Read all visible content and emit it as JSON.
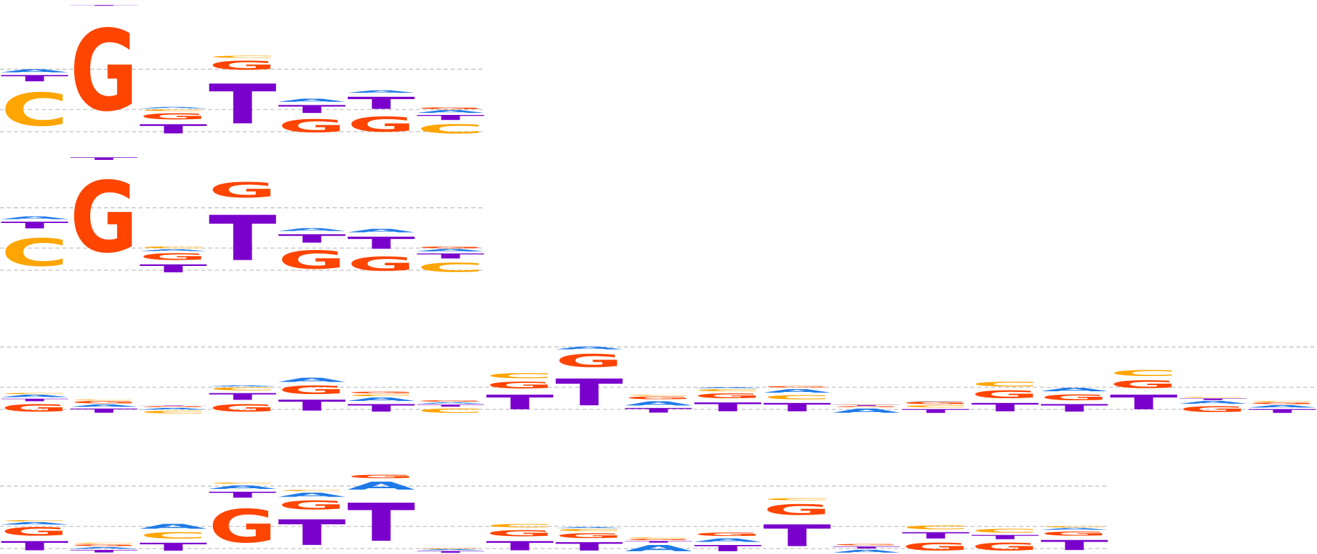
{
  "chart_data": [
    {
      "type": "logo",
      "ylim": [
        0,
        2
      ],
      "yticks": [
        0.07,
        0.4,
        1
      ],
      "grid": true,
      "series": [
        {
          "name": "A",
          "color": "#1f7ae8",
          "values": [
            0.07,
            0,
            0.03,
            0,
            0.07,
            0.05,
            0.06
          ]
        },
        {
          "name": "C",
          "color": "#ffa500",
          "values": [
            0.79,
            0,
            0.04,
            0.05,
            0,
            0,
            0.22
          ]
        },
        {
          "name": "G",
          "color": "#ff4500",
          "values": [
            0,
            1.94,
            0.15,
            0.21,
            0.31,
            0.35,
            0.04
          ]
        },
        {
          "name": "T",
          "color": "#7a00cc",
          "values": [
            0.15,
            0.02,
            0.22,
            0.95,
            0.19,
            0.29,
            0.12
          ]
        }
      ]
    },
    {
      "type": "logo",
      "ylim": [
        0,
        2
      ],
      "yticks": [
        0.07,
        0.4,
        1
      ],
      "grid": true,
      "series": [
        {
          "name": "A",
          "color": "#1f7ae8",
          "values": [
            0.06,
            0,
            0.04,
            0,
            0.06,
            0.08,
            0.05
          ]
        },
        {
          "name": "C",
          "color": "#ffa500",
          "values": [
            0.66,
            0,
            0.04,
            0,
            0,
            0,
            0.22
          ]
        },
        {
          "name": "G",
          "color": "#ff4500",
          "values": [
            0,
            1.7,
            0.16,
            0.36,
            0.44,
            0.33,
            0.04
          ]
        },
        {
          "name": "T",
          "color": "#7a00cc",
          "values": [
            0.16,
            0.06,
            0.19,
            1.08,
            0.2,
            0.29,
            0.12
          ]
        }
      ]
    },
    {
      "type": "logo",
      "ylim": [
        0,
        2
      ],
      "yticks": [
        0.07,
        0.4,
        1
      ],
      "grid": true,
      "series": [
        {
          "name": "A",
          "color": "#1f7ae8",
          "values": [
            0.05,
            0.05,
            0.04,
            0.02,
            0.1,
            0.08,
            0.03,
            0,
            0.06,
            0.1,
            0.02,
            0.09,
            0.1,
            0.01,
            0,
            0.09,
            0,
            0.06,
            0.05
          ]
        },
        {
          "name": "C",
          "color": "#ffa500",
          "values": [
            0.03,
            0.02,
            0.06,
            0.07,
            0,
            0.04,
            0.1,
            0.12,
            0,
            0.02,
            0.05,
            0.1,
            0.01,
            0.05,
            0.11,
            0,
            0.14,
            0.02,
            0.02
          ]
        },
        {
          "name": "G",
          "color": "#ff4500",
          "values": [
            0.18,
            0.05,
            0.02,
            0.18,
            0.2,
            0.04,
            0.03,
            0.16,
            0.31,
            0.06,
            0.12,
            0.03,
            0.02,
            0.05,
            0.19,
            0.14,
            0.19,
            0.14,
            0.04
          ]
        },
        {
          "name": "T",
          "color": "#7a00cc",
          "values": [
            0.06,
            0.1,
            0.01,
            0.16,
            0.26,
            0.18,
            0.05,
            0.35,
            0.64,
            0.11,
            0.21,
            0.2,
            0.02,
            0.09,
            0.2,
            0.18,
            0.35,
            0.04,
            0.09
          ]
        }
      ]
    },
    {
      "type": "logo",
      "ylim": [
        0,
        2
      ],
      "yticks": [
        0.07,
        0.4,
        1
      ],
      "grid": true,
      "series": [
        {
          "name": "A",
          "color": "#1f7ae8",
          "values": [
            0.05,
            0.04,
            0.12,
            0.09,
            0.1,
            0.19,
            0.02,
            0,
            0.02,
            0.15,
            0.09,
            0,
            0.06,
            0,
            0,
            0.04
          ]
        },
        {
          "name": "C",
          "color": "#ffa500",
          "values": [
            0.03,
            0.02,
            0.15,
            0.03,
            0.03,
            0,
            0.01,
            0.08,
            0.05,
            0.02,
            0,
            0.05,
            0,
            0.09,
            0.09,
            0.03
          ]
        },
        {
          "name": "G",
          "color": "#ff4500",
          "values": [
            0.2,
            0.04,
            0,
            0.8,
            0.21,
            0.08,
            0.01,
            0.15,
            0.12,
            0.03,
            0.08,
            0.26,
            0.03,
            0.19,
            0.19,
            0.1
          ]
        },
        {
          "name": "T",
          "color": "#7a00cc",
          "values": [
            0.22,
            0.06,
            0.19,
            0.14,
            0.61,
            0.91,
            0.04,
            0.22,
            0.2,
            0.04,
            0.15,
            0.52,
            0.05,
            0.15,
            0.1,
            0.24
          ]
        }
      ]
    }
  ]
}
